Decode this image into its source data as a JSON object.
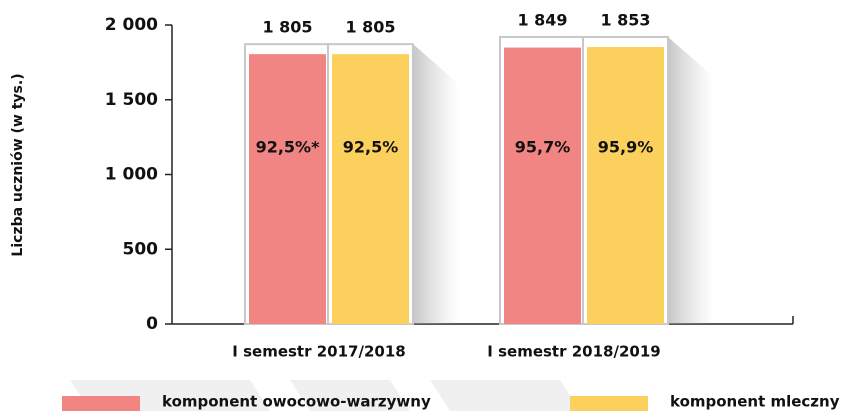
{
  "chart_data": {
    "type": "bar",
    "y_axis_label": "Liczba uczniów (w tys.)",
    "categories": [
      "I semestr 2017/2018",
      "I semestr 2018/2019"
    ],
    "series": [
      {
        "name": "komponent owocowo-warzywny",
        "color": "#f08584",
        "values": [
          1805,
          1849
        ],
        "value_labels": [
          "1 805",
          "1 849"
        ],
        "percent_labels": [
          "92,5%*",
          "95,7%"
        ]
      },
      {
        "name": "komponent mleczny",
        "color": "#fcd05c",
        "values": [
          1805,
          1853
        ],
        "value_labels": [
          "1 805",
          "1 853"
        ],
        "percent_labels": [
          "92,5%",
          "95,9%"
        ]
      }
    ],
    "ylim": [
      0,
      2000
    ],
    "yticks": [
      0,
      500,
      {
        "value": 1000,
        "label": "1 000"
      },
      {
        "value": 1500,
        "label": "1 500"
      },
      {
        "value": 2000,
        "label": "2 000"
      }
    ],
    "legend": "bottom"
  }
}
